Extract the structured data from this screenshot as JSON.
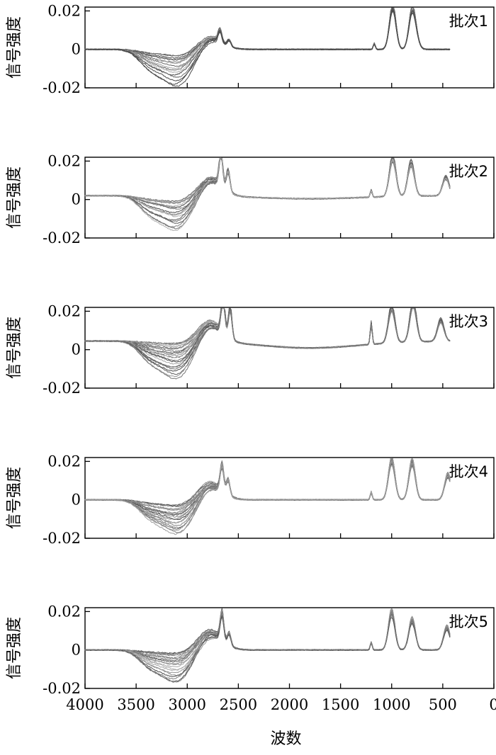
{
  "chart_data": {
    "type": "line",
    "xlabel": "波数",
    "ylabel": "信号强度",
    "xlim": [
      4000,
      0
    ],
    "ylim": [
      -0.02,
      0.022
    ],
    "x_ticks": [
      4000,
      3500,
      3000,
      2500,
      2000,
      1500,
      1000,
      500,
      0
    ],
    "x_tick_labels": [
      "4000",
      "3500",
      "3000",
      "2500",
      "2000",
      "1500",
      "1000",
      "500",
      "0"
    ],
    "y_ticks": [
      0.02,
      0,
      -0.02
    ],
    "y_tick_labels": [
      "0.02",
      "0",
      "-0.02"
    ],
    "line_color": "#555555",
    "panels": [
      {
        "label": "批次1",
        "baseline": 0.0,
        "high_end": 0.0,
        "trough_min": -0.003,
        "trough_max": -0.019,
        "shoulder_peak": 0.007,
        "peaks": [
          [
            2680,
            0.006
          ],
          [
            2590,
            0.003
          ],
          [
            1170,
            0.003
          ],
          [
            990,
            0.022
          ],
          [
            800,
            0.019
          ],
          [
            760,
            0.004
          ]
        ],
        "series_count": 16
      },
      {
        "label": "批次2",
        "baseline": 0.002,
        "high_end": 0.001,
        "trough_min": -0.003,
        "trough_max": -0.018,
        "shoulder_peak": 0.01,
        "peaks": [
          [
            2670,
            0.018
          ],
          [
            2600,
            0.011
          ],
          [
            1200,
            0.004
          ],
          [
            990,
            0.021
          ],
          [
            810,
            0.018
          ],
          [
            470,
            0.01
          ]
        ],
        "series_count": 18
      },
      {
        "label": "批次3",
        "baseline": 0.0045,
        "high_end": 0.0045,
        "trough_min": -0.001,
        "trough_max": -0.019,
        "shoulder_peak": 0.011,
        "peaks": [
          [
            2650,
            0.021
          ],
          [
            2580,
            0.017
          ],
          [
            1200,
            0.012
          ],
          [
            1000,
            0.02
          ],
          [
            790,
            0.022
          ],
          [
            520,
            0.012
          ]
        ],
        "series_count": 24
      },
      {
        "label": "批次4",
        "baseline": 0.0,
        "high_end": 0.0,
        "trough_min": -0.003,
        "trough_max": -0.018,
        "shoulder_peak": 0.009,
        "peaks": [
          [
            2660,
            0.014
          ],
          [
            2600,
            0.008
          ],
          [
            1200,
            0.004
          ],
          [
            1000,
            0.021
          ],
          [
            800,
            0.02
          ],
          [
            450,
            0.013
          ]
        ],
        "series_count": 22
      },
      {
        "label": "批次5",
        "baseline": 0.0,
        "high_end": 0.0,
        "trough_min": -0.002,
        "trough_max": -0.017,
        "shoulder_peak": 0.01,
        "peaks": [
          [
            2660,
            0.014
          ],
          [
            2590,
            0.006
          ],
          [
            1200,
            0.004
          ],
          [
            1000,
            0.02
          ],
          [
            800,
            0.016
          ],
          [
            460,
            0.012
          ]
        ],
        "series_count": 20
      }
    ]
  }
}
